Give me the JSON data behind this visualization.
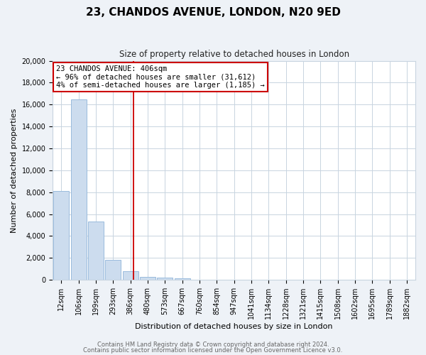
{
  "title": "23, CHANDOS AVENUE, LONDON, N20 9ED",
  "subtitle": "Size of property relative to detached houses in London",
  "xlabel": "Distribution of detached houses by size in London",
  "ylabel": "Number of detached properties",
  "bar_labels": [
    "12sqm",
    "106sqm",
    "199sqm",
    "293sqm",
    "386sqm",
    "480sqm",
    "573sqm",
    "667sqm",
    "760sqm",
    "854sqm",
    "947sqm",
    "1041sqm",
    "1134sqm",
    "1228sqm",
    "1321sqm",
    "1415sqm",
    "1508sqm",
    "1602sqm",
    "1695sqm",
    "1789sqm",
    "1882sqm"
  ],
  "bar_values": [
    8100,
    16500,
    5300,
    1800,
    800,
    300,
    200,
    150,
    0,
    0,
    0,
    0,
    0,
    0,
    0,
    0,
    0,
    0,
    0,
    0,
    0
  ],
  "bar_color": "#ccdcee",
  "bar_edge_color": "#99bbdd",
  "annotation_line1": "23 CHANDOS AVENUE: 406sqm",
  "annotation_line2": "← 96% of detached houses are smaller (31,612)",
  "annotation_line3": "4% of semi-detached houses are larger (1,185) →",
  "vline_color": "#cc0000",
  "annotation_box_edge": "#cc0000",
  "ylim": [
    0,
    20000
  ],
  "yticks": [
    0,
    2000,
    4000,
    6000,
    8000,
    10000,
    12000,
    14000,
    16000,
    18000,
    20000
  ],
  "footer_line1": "Contains HM Land Registry data © Crown copyright and database right 2024.",
  "footer_line2": "Contains public sector information licensed under the Open Government Licence v3.0.",
  "background_color": "#eef2f7",
  "plot_background": "#ffffff",
  "grid_color": "#c8d4e0",
  "title_fontsize": 11,
  "subtitle_fontsize": 8.5,
  "xlabel_fontsize": 8,
  "ylabel_fontsize": 8,
  "tick_fontsize": 7,
  "annotation_fontsize": 7.5,
  "footer_fontsize": 6
}
